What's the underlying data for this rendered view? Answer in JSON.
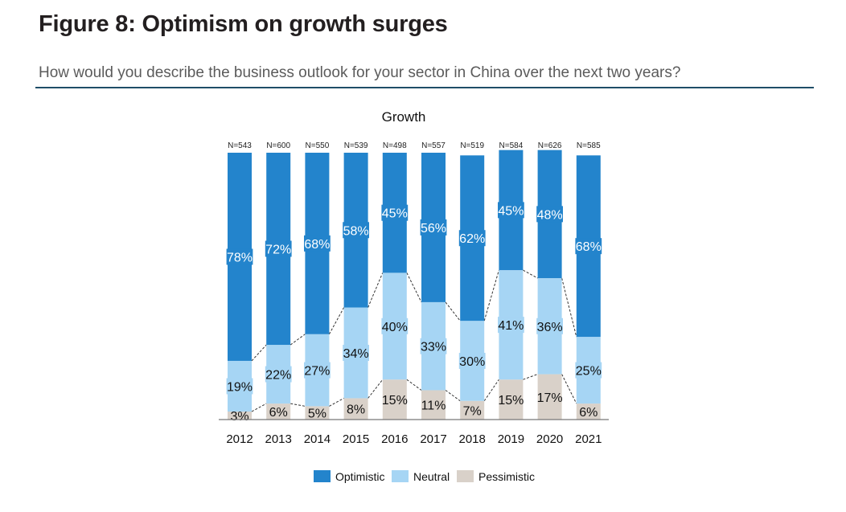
{
  "figure": {
    "title": "Figure 8: Optimism on growth surges",
    "subtitle": "How would you describe the business outlook for your sector in China over the next two years?"
  },
  "chart_data": {
    "type": "bar",
    "stacked": true,
    "percent_stacked": true,
    "title": "Growth",
    "categories": [
      "2012",
      "2013",
      "2014",
      "2015",
      "2016",
      "2017",
      "2018",
      "2019",
      "2020",
      "2021"
    ],
    "sample_sizes": [
      "N=543",
      "N=600",
      "N=550",
      "N=539",
      "N=498",
      "N=557",
      "N=519",
      "N=584",
      "N=626",
      "N=585"
    ],
    "series": [
      {
        "name": "Pessimistic",
        "color": "#d9d1c9",
        "values": [
          3,
          6,
          5,
          8,
          15,
          11,
          7,
          15,
          17,
          6
        ]
      },
      {
        "name": "Neutral",
        "color": "#a6d5f4",
        "values": [
          19,
          22,
          27,
          34,
          40,
          33,
          30,
          41,
          36,
          25
        ]
      },
      {
        "name": "Optimistic",
        "color": "#2384cc",
        "values": [
          78,
          72,
          68,
          58,
          45,
          56,
          62,
          45,
          48,
          68
        ]
      }
    ],
    "legend_order": [
      "Optimistic",
      "Neutral",
      "Pessimistic"
    ],
    "legend_position": "bottom",
    "ylim": [
      0,
      100
    ],
    "grid": false,
    "connector_lines": true,
    "value_suffix": "%"
  }
}
